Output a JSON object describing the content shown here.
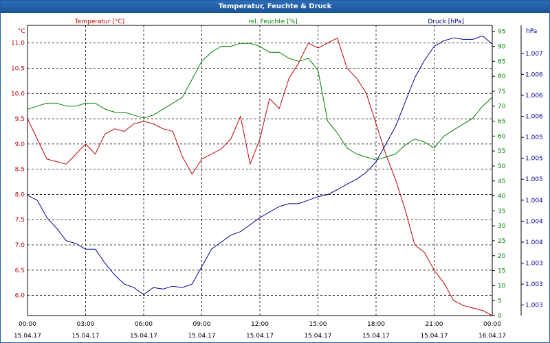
{
  "title": "Temperatur, Feuchte & Druck",
  "chart_data": {
    "type": "line",
    "x_labels": [
      {
        "time": "00:00",
        "date": "15.04.17"
      },
      {
        "time": "03:00",
        "date": "15.04.17"
      },
      {
        "time": "06:00",
        "date": "15.04.17"
      },
      {
        "time": "09:00",
        "date": "15.04.17"
      },
      {
        "time": "12:00",
        "date": "15.04.17"
      },
      {
        "time": "15:00",
        "date": "15.04.17"
      },
      {
        "time": "18:00",
        "date": "15.04.17"
      },
      {
        "time": "21:00",
        "date": "15.04.17"
      },
      {
        "time": "00:00",
        "date": "16.04.17"
      }
    ],
    "xlim": [
      0,
      24
    ],
    "axes": {
      "temperature": {
        "label": "Temperatur [°C]",
        "unit": "°C",
        "color": "#c00000",
        "ylim": [
          5.6,
          11.35
        ],
        "ticks": [
          6.0,
          6.5,
          7.0,
          7.5,
          8.0,
          8.5,
          9.0,
          9.5,
          10.0,
          10.5,
          11.0
        ],
        "tick_labels": [
          "6.0",
          "6.5",
          "7.0",
          "7.5",
          "8.0",
          "8.5",
          "9.0",
          "9.5",
          "10.0",
          "10.5",
          "11.0"
        ]
      },
      "humidity": {
        "label": "rel. Feuchte [%]",
        "unit": "%",
        "color": "#008000",
        "ylim": [
          0,
          97
        ],
        "ticks": [
          0,
          5,
          10,
          15,
          20,
          25,
          30,
          35,
          40,
          45,
          50,
          55,
          60,
          65,
          70,
          75,
          80,
          85,
          90,
          95
        ],
        "tick_labels": [
          "0",
          "5",
          "10",
          "15",
          "20",
          "25",
          "30",
          "35",
          "40",
          "45",
          "50",
          "55",
          "60",
          "65",
          "70",
          "75",
          "80",
          "85",
          "90",
          "95"
        ]
      },
      "pressure": {
        "label": "Druck [hPa]",
        "unit": "hPa",
        "color": "#000090",
        "ylim": [
          0,
          415
        ],
        "ticks": [
          15,
          45,
          75,
          105,
          135,
          165,
          195,
          225,
          255,
          285,
          315,
          345,
          375
        ],
        "tick_labels": [
          "1.003",
          "1.003",
          "1.003",
          "1.004",
          "1.004",
          "1.004",
          "1.005",
          "1.005",
          "1.005",
          "1.006",
          "1.006",
          "1.006",
          "1.007"
        ]
      }
    },
    "series": [
      {
        "name": "Temperatur [°C]",
        "axis": "temperature",
        "color": "#c00000",
        "x": [
          0,
          0.5,
          1,
          1.5,
          2,
          2.5,
          3,
          3.5,
          4,
          4.5,
          5,
          5.5,
          6,
          6.5,
          7,
          7.5,
          8,
          8.5,
          9,
          9.5,
          10,
          10.5,
          11,
          11.5,
          12,
          12.5,
          13,
          13.5,
          14,
          14.5,
          15,
          15.5,
          16,
          16.5,
          17,
          17.5,
          18,
          18.5,
          19,
          19.5,
          20,
          20.5,
          21,
          21.5,
          22,
          22.5,
          23,
          23.5,
          24
        ],
        "values": [
          9.5,
          9.1,
          8.7,
          8.65,
          8.6,
          8.8,
          9.0,
          8.8,
          9.2,
          9.3,
          9.25,
          9.4,
          9.45,
          9.4,
          9.3,
          9.25,
          8.75,
          8.4,
          8.7,
          8.8,
          8.9,
          9.1,
          9.55,
          8.6,
          9.1,
          9.9,
          9.7,
          10.3,
          10.6,
          11.0,
          10.9,
          11.0,
          11.1,
          10.5,
          10.3,
          10.0,
          9.4,
          8.8,
          8.3,
          7.7,
          7.0,
          6.85,
          6.5,
          6.25,
          5.9,
          5.8,
          5.75,
          5.7,
          5.6
        ]
      },
      {
        "name": "rel. Feuchte [%]",
        "axis": "humidity",
        "color": "#008000",
        "x": [
          0,
          0.5,
          1,
          1.5,
          2,
          2.5,
          3,
          3.5,
          4,
          4.5,
          5,
          5.5,
          6,
          6.5,
          7,
          7.5,
          8,
          8.5,
          9,
          9.5,
          10,
          10.5,
          11,
          11.5,
          12,
          12.5,
          13,
          13.5,
          14,
          14.5,
          15,
          15.5,
          16,
          16.5,
          17,
          17.5,
          18,
          18.5,
          19,
          19.5,
          20,
          20.5,
          21,
          21.5,
          22,
          22.5,
          23,
          23.5,
          24
        ],
        "values": [
          69,
          70,
          71,
          71,
          70,
          70,
          71,
          71,
          69,
          68,
          68,
          67,
          66,
          67,
          69,
          71,
          73,
          79,
          85,
          88,
          90,
          90,
          91,
          91,
          90,
          88,
          88,
          86,
          85,
          86,
          82,
          65,
          61,
          56,
          54,
          53,
          52,
          53,
          54,
          57,
          59,
          58,
          56,
          60,
          62,
          64,
          66,
          70,
          73
        ]
      },
      {
        "name": "Druck [hPa]",
        "axis": "pressure",
        "color": "#000090",
        "x": [
          0,
          0.5,
          1,
          1.5,
          2,
          2.5,
          3,
          3.5,
          4,
          4.5,
          5,
          5.5,
          6,
          6.5,
          7,
          7.5,
          8,
          8.5,
          9,
          9.5,
          10,
          10.5,
          11,
          11.5,
          12,
          12.5,
          13,
          13.5,
          14,
          14.5,
          15,
          15.5,
          16,
          16.5,
          17,
          17.5,
          18,
          18.5,
          19,
          19.5,
          20,
          20.5,
          21,
          21.5,
          22,
          22.5,
          23,
          23.5,
          24
        ],
        "values": [
          172,
          165,
          140,
          125,
          107,
          103,
          95,
          95,
          75,
          58,
          45,
          40,
          30,
          40,
          38,
          42,
          40,
          45,
          70,
          95,
          105,
          115,
          120,
          130,
          140,
          148,
          156,
          160,
          160,
          165,
          170,
          173,
          180,
          188,
          195,
          205,
          220,
          245,
          270,
          305,
          340,
          365,
          385,
          393,
          397,
          395,
          395,
          400,
          388
        ]
      }
    ]
  }
}
